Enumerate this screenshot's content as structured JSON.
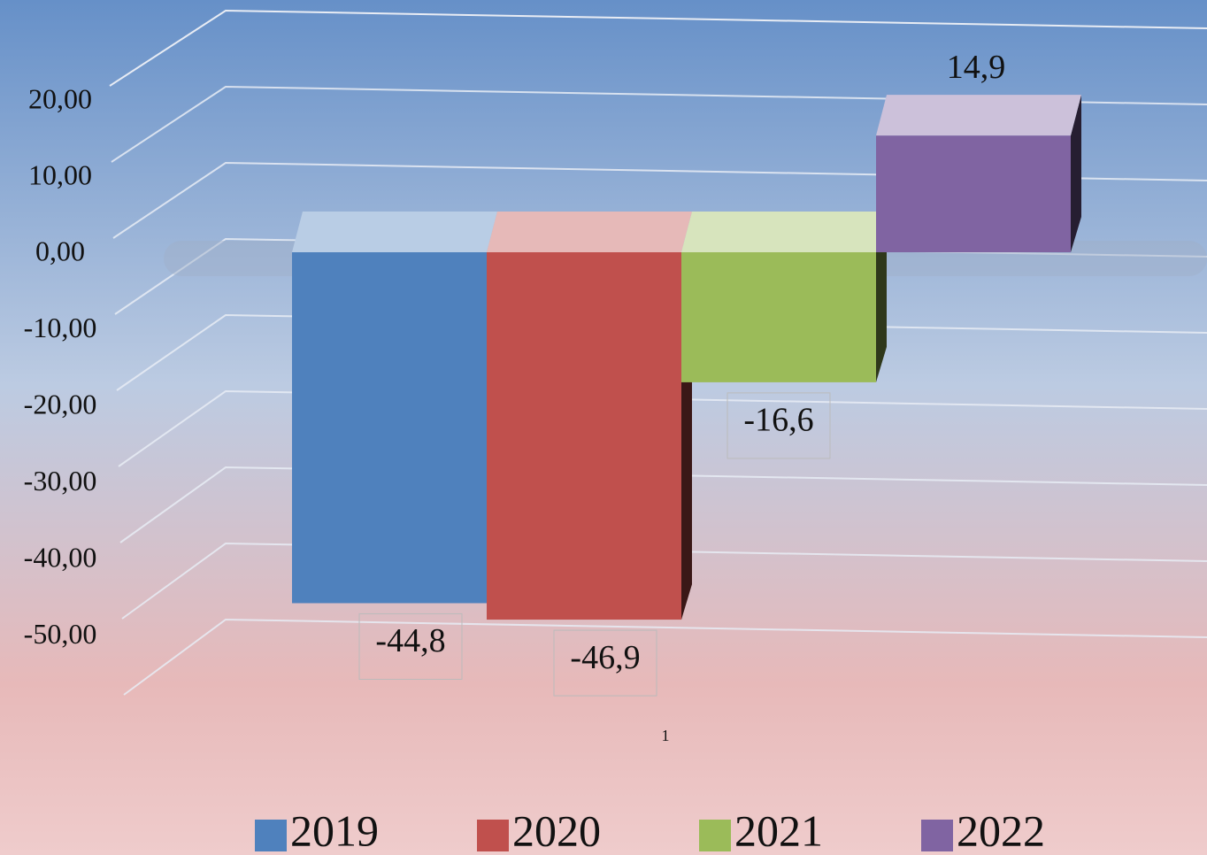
{
  "chart_data": {
    "type": "bar3d",
    "categories": [
      "1"
    ],
    "series": [
      {
        "name": "2019",
        "color": "#4f81bd",
        "values": [
          -44.8
        ],
        "value_labels": [
          "-44,8"
        ]
      },
      {
        "name": "2020",
        "color": "#c0504d",
        "values": [
          -46.9
        ],
        "value_labels": [
          "-46,9"
        ]
      },
      {
        "name": "2021",
        "color": "#9bbb59",
        "values": [
          -16.6
        ],
        "value_labels": [
          "-16,6"
        ]
      },
      {
        "name": "2022",
        "color": "#8064a2",
        "values": [
          14.9
        ],
        "value_labels": [
          "14,9"
        ]
      }
    ],
    "ylim": [
      -50,
      30
    ],
    "yticks": [
      {
        "value": -50,
        "label": "-50,00"
      },
      {
        "value": -40,
        "label": "-40,00"
      },
      {
        "value": -30,
        "label": "-30,00"
      },
      {
        "value": -20,
        "label": "-20,00"
      },
      {
        "value": -10,
        "label": "-10,00"
      },
      {
        "value": 0,
        "label": "0,00"
      },
      {
        "value": 10,
        "label": "10,00"
      },
      {
        "value": 20,
        "label": "20,00"
      }
    ],
    "grid": true,
    "legend": "bottom"
  }
}
